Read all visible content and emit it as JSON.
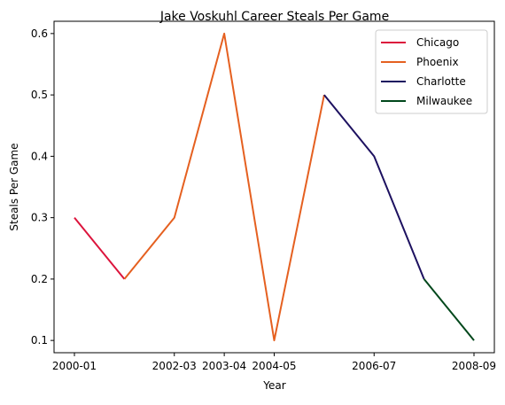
{
  "chart_data": {
    "type": "line",
    "title": "Jake Voskuhl Career Steals Per Game",
    "xlabel": "Year",
    "ylabel": "Steals Per Game",
    "x": [
      "2000-01",
      "2001-02",
      "2002-03",
      "2003-04",
      "2004-05",
      "2005-06",
      "2006-07",
      "2007-08",
      "2008-09"
    ],
    "x_ticks": [
      "2000-01",
      "2002-03",
      "2003-04",
      "2004-05",
      "2006-07",
      "2008-09"
    ],
    "ylim": [
      0.08,
      0.62
    ],
    "y_ticks": [
      "0.1",
      "0.2",
      "0.3",
      "0.4",
      "0.5",
      "0.6"
    ],
    "grid": false,
    "legend_position": "top-right",
    "series": [
      {
        "name": "Chicago",
        "color": "#DC143C",
        "x": [
          "2000-01",
          "2001-02"
        ],
        "values": [
          0.3,
          0.2
        ]
      },
      {
        "name": "Phoenix",
        "color": "#E56020",
        "x": [
          "2001-02",
          "2002-03",
          "2003-04",
          "2004-05",
          "2005-06"
        ],
        "values": [
          0.2,
          0.3,
          0.6,
          0.1,
          0.5
        ]
      },
      {
        "name": "Charlotte",
        "color": "#1D1160",
        "x": [
          "2005-06",
          "2006-07",
          "2007-08"
        ],
        "values": [
          0.5,
          0.4,
          0.2
        ]
      },
      {
        "name": "Milwaukee",
        "color": "#00471B",
        "x": [
          "2007-08",
          "2008-09"
        ],
        "values": [
          0.2,
          0.1
        ]
      }
    ]
  }
}
